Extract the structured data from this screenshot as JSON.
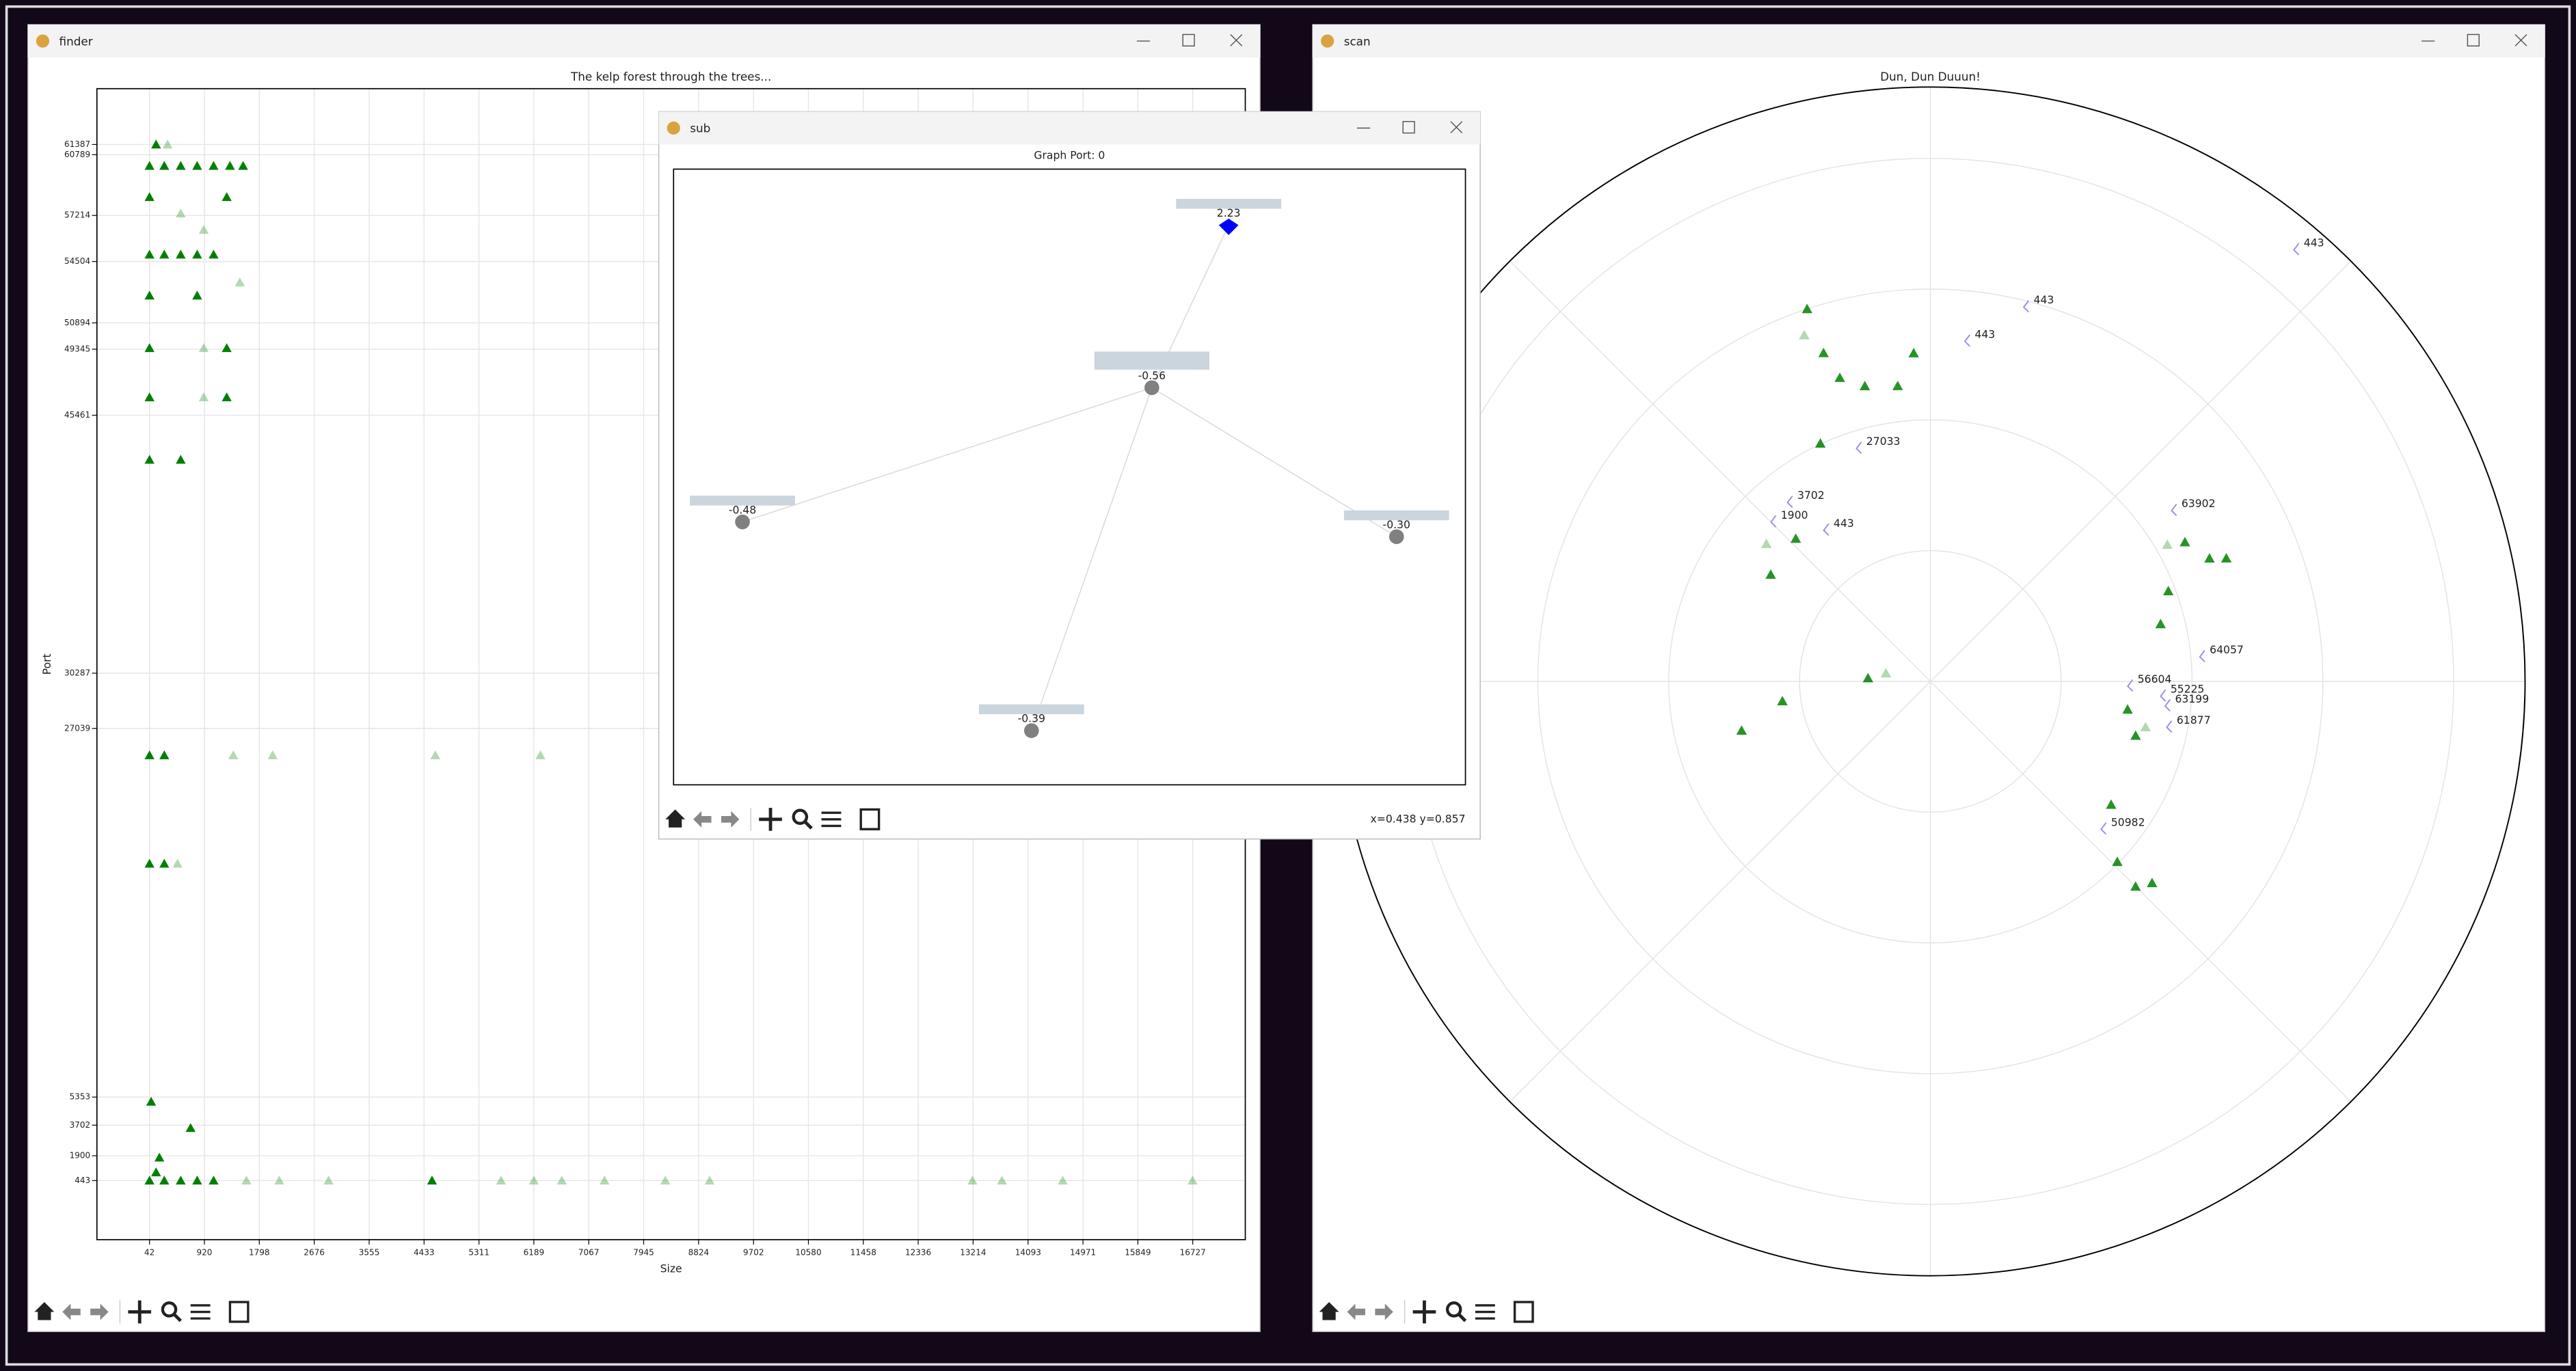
{
  "windows": [
    {
      "title": "finder",
      "chart": {
        "type": "scatter",
        "title": "The kelp forest through the trees...",
        "xlabel": "Size",
        "ylabel": "Port",
        "xlim": [
          -799,
          17567
        ],
        "ylim": [
          -3034,
          64671
        ],
        "xticks": [
          42,
          920,
          1798,
          2676,
          3555,
          4433,
          5311,
          6189,
          7067,
          7945,
          8824,
          9702,
          10580,
          11458,
          12336,
          13214,
          14093,
          14971,
          15849,
          16727
        ],
        "yticks": [
          443,
          1900,
          3702,
          5353,
          27039,
          30287,
          45461,
          49345,
          50894,
          54504,
          57214,
          60789,
          61387
        ],
        "grid": true,
        "marker": "triangle",
        "series": [
          {
            "color": "#008000",
            "opacity": 1,
            "x": [
              42,
              278,
              541,
              804,
              1067,
              4560,
              147,
              200,
              699,
              68,
              42,
              278,
              42,
              278,
              42,
              541,
              42,
              1277,
              42,
              1277,
              42,
              804,
              42,
              278,
              541,
              804,
              1067,
              42,
              1277,
              42,
              278,
              541,
              804,
              1067,
              1329,
              1539,
              147
            ],
            "y": [
              443,
              443,
              443,
              443,
              443,
              443,
              926,
              1795,
              3534,
              5079,
              25457,
              25457,
              19083,
              19083,
              42842,
              42842,
              46513,
              46513,
              49410,
              49410,
              52500,
              52500,
              54914,
              54914,
              54914,
              54914,
              54914,
              58294,
              58294,
              60129,
              60129,
              60129,
              60129,
              60129,
              60129,
              60129,
              61385
            ]
          },
          {
            "color": "#008000",
            "opacity": 0.3,
            "x": [
              1592,
              2117,
              2905,
              5664,
              6189,
              6636,
              7319,
              8291,
              9000,
              13203,
              13676,
              14648,
              16723,
              2012,
              4613,
              6294,
              1382,
              489,
              909,
              909,
              1487,
              909,
              541,
              331
            ],
            "y": [
              443,
              443,
              443,
              443,
              443,
              443,
              443,
              443,
              443,
              443,
              443,
              443,
              443,
              25457,
              25457,
              25457,
              25457,
              19083,
              46513,
              49410,
              53273,
              56363,
              57329,
              61385
            ]
          }
        ]
      }
    },
    {
      "title": "scan",
      "chart": {
        "type": "polar-scatter",
        "title": "Dun, Dun Duuun!",
        "rlim": [
          0,
          1
        ],
        "rgrid": [
          0.22,
          0.44,
          0.66,
          0.88
        ],
        "thetagrid": [
          0,
          45,
          90,
          135,
          180,
          225,
          270,
          315
        ],
        "marker": "triangle",
        "series": [
          {
            "color": "#008000",
            "opacity": 0.85,
            "theta": [
              108.3,
              108,
              106.6,
              114.8,
              102.5,
              96.3,
              92.9,
              133.3,
              146.2,
              -172.4,
              -165.4,
              177,
              28.7,
              23.8,
              20.8,
              14,
              22.6,
              -8.1,
              -14.8,
              -34.3,
              -44,
              -45,
              -42.3
            ],
            "r": [
              0.66,
              0.581,
              0.533,
              0.441,
              0.509,
              0.5,
              0.553,
              0.33,
              0.323,
              0.251,
              0.328,
              0.105,
              0.488,
              0.513,
              0.428,
              0.399,
              0.539,
              0.335,
              0.357,
              0.368,
              0.437,
              0.488,
              0.504
            ]
          },
          {
            "color": "#008000",
            "opacity": 0.3,
            "theta": [
              169.5,
              110,
              140,
              30,
              -12
            ],
            "r": [
              0.076,
              0.62,
              0.36,
              0.46,
              0.37
            ]
          }
        ],
        "annotations": [
          {
            "text": "443",
            "theta": 49.9,
            "r": 0.949
          },
          {
            "text": "443",
            "theta": 76,
            "r": 0.649
          },
          {
            "text": "443",
            "theta": 84.2,
            "r": 0.575
          },
          {
            "text": "27033",
            "theta": 107.6,
            "r": 0.411
          },
          {
            "text": "3702",
            "theta": 128.6,
            "r": 0.385
          },
          {
            "text": "1900",
            "theta": 135,
            "r": 0.379
          },
          {
            "text": "443",
            "theta": 125.2,
            "r": 0.311
          },
          {
            "text": "63902",
            "theta": 35.3,
            "r": 0.497
          },
          {
            "text": "64057",
            "theta": 5.2,
            "r": 0.455
          },
          {
            "text": "56604",
            "theta": -1.4,
            "r": 0.332
          },
          {
            "text": "55225",
            "theta": -3.7,
            "r": 0.388
          },
          {
            "text": "63199",
            "theta": -6,
            "r": 0.397
          },
          {
            "text": "61877",
            "theta": -11,
            "r": 0.405
          },
          {
            "text": "50982",
            "theta": -40.9,
            "r": 0.38
          }
        ]
      }
    },
    {
      "title": "sub",
      "status": "x=0.438 y=0.857",
      "chart": {
        "type": "graph",
        "title": "Graph Port: 0",
        "xlim": [
          0,
          1
        ],
        "ylim": [
          0,
          1
        ],
        "nodes": [
          {
            "label": "2.23",
            "x": 0.701,
            "y": 0.909,
            "color": "#0000ff",
            "marker": "diamond"
          },
          {
            "label": "-0.56",
            "x": 0.604,
            "y": 0.645,
            "color": "#808080",
            "marker": "circle"
          },
          {
            "label": "-0.48",
            "x": 0.087,
            "y": 0.427,
            "color": "#808080",
            "marker": "circle"
          },
          {
            "label": "-0.30",
            "x": 0.913,
            "y": 0.403,
            "color": "#808080",
            "marker": "circle"
          },
          {
            "label": "-0.39",
            "x": 0.452,
            "y": 0.088,
            "color": "#808080",
            "marker": "circle"
          }
        ],
        "edges": [
          [
            1,
            0
          ],
          [
            1,
            2
          ],
          [
            1,
            3
          ],
          [
            1,
            4
          ]
        ]
      }
    }
  ]
}
